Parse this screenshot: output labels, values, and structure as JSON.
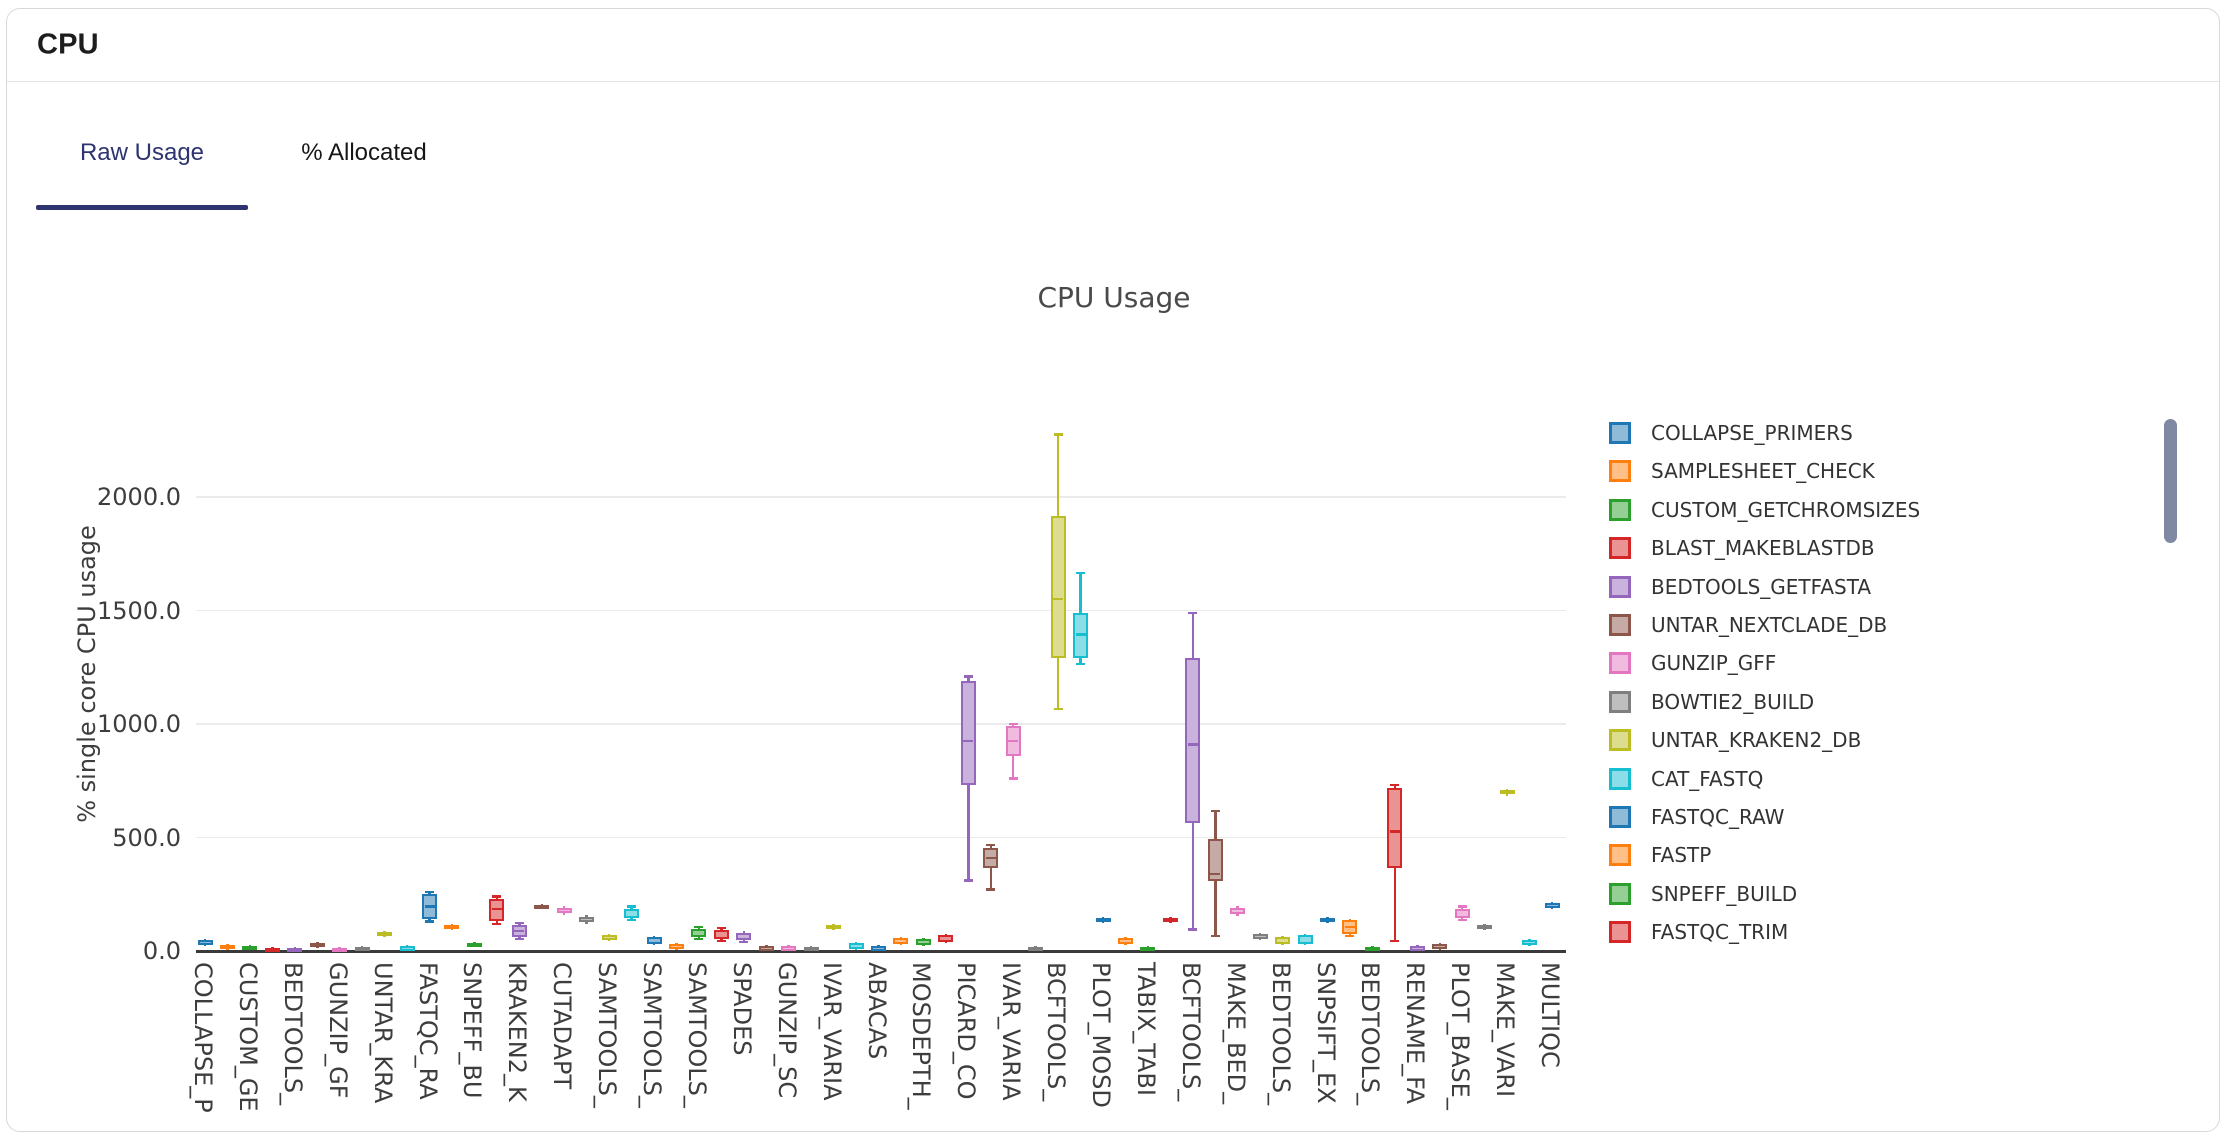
{
  "header": {
    "title": "CPU"
  },
  "tabs": [
    {
      "label": "Raw Usage",
      "active": true
    },
    {
      "label": "% Allocated",
      "active": false
    }
  ],
  "accent": {
    "tab_active": "#2d3470",
    "scrollbar": "#7f89a4"
  },
  "chart_data": {
    "type": "box",
    "title": "CPU Usage",
    "ylabel": "% single core CPU usage",
    "ylim": [
      0,
      2420
    ],
    "yticks": [
      0,
      500,
      1000,
      1500,
      2000
    ],
    "ytick_labels": [
      "0.0",
      "500.0",
      "1000.0",
      "1500.0",
      "2000.0"
    ],
    "grid": true,
    "legend_position": "right",
    "legend_scrollable": true,
    "note_values_order": "values = [whisker_low, q1, median, q3, whisker_high] in % single-core CPU",
    "palette": {
      "blue": {
        "stroke": "#1f77b4",
        "fill": "#8fbbd9"
      },
      "orange": {
        "stroke": "#ff7f0e",
        "fill": "#ffbf86"
      },
      "green": {
        "stroke": "#2ca02c",
        "fill": "#95cf95"
      },
      "red": {
        "stroke": "#d62728",
        "fill": "#ea9393"
      },
      "purple": {
        "stroke": "#9467bd",
        "fill": "#c9b3dd"
      },
      "brown": {
        "stroke": "#8c564b",
        "fill": "#c5aaa5"
      },
      "pink": {
        "stroke": "#e377c2",
        "fill": "#f1bbe0"
      },
      "gray": {
        "stroke": "#7f7f7f",
        "fill": "#bfbfbf"
      },
      "olive": {
        "stroke": "#bcbd22",
        "fill": "#dddd90"
      },
      "cyan": {
        "stroke": "#17becf",
        "fill": "#8bdee7"
      }
    },
    "legend": [
      {
        "label": "COLLAPSE_PRIMERS",
        "color": "blue"
      },
      {
        "label": "SAMPLESHEET_CHECK",
        "color": "orange"
      },
      {
        "label": "CUSTOM_GETCHROMSIZES",
        "color": "green"
      },
      {
        "label": "BLAST_MAKEBLASTDB",
        "color": "red"
      },
      {
        "label": "BEDTOOLS_GETFASTA",
        "color": "purple"
      },
      {
        "label": "UNTAR_NEXTCLADE_DB",
        "color": "brown"
      },
      {
        "label": "GUNZIP_GFF",
        "color": "pink"
      },
      {
        "label": "BOWTIE2_BUILD",
        "color": "gray"
      },
      {
        "label": "UNTAR_KRAKEN2_DB",
        "color": "olive"
      },
      {
        "label": "CAT_FASTQ",
        "color": "cyan"
      },
      {
        "label": "FASTQC_RAW",
        "color": "blue"
      },
      {
        "label": "FASTP",
        "color": "orange"
      },
      {
        "label": "SNPEFF_BUILD",
        "color": "green"
      },
      {
        "label": "FASTQC_TRIM",
        "color": "red"
      }
    ],
    "categories": [
      {
        "label": "COLLAPSE_P",
        "color": "blue",
        "values": [
          20,
          27,
          38,
          49,
          55
        ]
      },
      {
        "label": "",
        "color": "orange",
        "values": [
          5,
          9,
          18,
          27,
          31
        ]
      },
      {
        "label": "CUSTOM_GE",
        "color": "green",
        "values": [
          5,
          9,
          15,
          22,
          26
        ]
      },
      {
        "label": "",
        "color": "red",
        "values": [
          0,
          0,
          6,
          13,
          17
        ]
      },
      {
        "label": "BEDTOOLS_",
        "color": "purple",
        "values": [
          0,
          0,
          6,
          13,
          17
        ]
      },
      {
        "label": "",
        "color": "brown",
        "values": [
          13,
          18,
          27,
          35,
          40
        ]
      },
      {
        "label": "GUNZIP_GF",
        "color": "pink",
        "values": [
          0,
          0,
          6,
          13,
          17
        ]
      },
      {
        "label": "",
        "color": "gray",
        "values": [
          0,
          0,
          9,
          18,
          22
        ]
      },
      {
        "label": "UNTAR_KRA",
        "color": "olive",
        "values": [
          62,
          66,
          75,
          84,
          88
        ]
      },
      {
        "label": "",
        "color": "cyan",
        "values": [
          0,
          0,
          11,
          22,
          26
        ]
      },
      {
        "label": "FASTQC_RA",
        "color": "blue",
        "values": [
          130,
          140,
          195,
          250,
          260
        ]
      },
      {
        "label": "",
        "color": "orange",
        "values": [
          93,
          97,
          106,
          115,
          119
        ]
      },
      {
        "label": "SNPEFF_BU",
        "color": "green",
        "values": [
          18,
          22,
          28,
          35,
          40
        ]
      },
      {
        "label": "",
        "color": "red",
        "values": [
          120,
          130,
          185,
          230,
          240
        ]
      },
      {
        "label": "KRAKEN2_K",
        "color": "purple",
        "values": [
          53,
          62,
          88,
          115,
          124
        ]
      },
      {
        "label": "",
        "color": "brown",
        "values": [
          185,
          190,
          197,
          204,
          209
        ]
      },
      {
        "label": "CUTADAPT",
        "color": "pink",
        "values": [
          160,
          168,
          179,
          190,
          198
        ]
      },
      {
        "label": "",
        "color": "gray",
        "values": [
          120,
          128,
          139,
          150,
          158
        ]
      },
      {
        "label": "SAMTOOLS_",
        "color": "olive",
        "values": [
          44,
          49,
          60,
          71,
          75
        ]
      },
      {
        "label": "",
        "color": "cyan",
        "values": [
          137,
          146,
          166,
          186,
          195
        ]
      },
      {
        "label": "SAMTOOLS_",
        "color": "blue",
        "values": [
          26,
          30,
          45,
          62,
          66
        ]
      },
      {
        "label": "",
        "color": "orange",
        "values": [
          5,
          10,
          20,
          30,
          35
        ]
      },
      {
        "label": "SAMTOOLS_",
        "color": "green",
        "values": [
          53,
          62,
          80,
          97,
          106
        ]
      },
      {
        "label": "",
        "color": "red",
        "values": [
          44,
          53,
          73,
          93,
          102
        ]
      },
      {
        "label": "SPADES",
        "color": "purple",
        "values": [
          40,
          49,
          64,
          80,
          88
        ]
      },
      {
        "label": "",
        "color": "brown",
        "values": [
          0,
          0,
          11,
          22,
          26
        ]
      },
      {
        "label": "GUNZIP_SC",
        "color": "pink",
        "values": [
          0,
          0,
          11,
          22,
          26
        ]
      },
      {
        "label": "",
        "color": "gray",
        "values": [
          0,
          0,
          9,
          18,
          22
        ]
      },
      {
        "label": "IVAR_VARIA",
        "color": "olive",
        "values": [
          93,
          97,
          106,
          115,
          119
        ]
      },
      {
        "label": "",
        "color": "cyan",
        "values": [
          4,
          9,
          22,
          35,
          40
        ]
      },
      {
        "label": "ABACAS",
        "color": "blue",
        "values": [
          0,
          0,
          11,
          22,
          26
        ]
      },
      {
        "label": "",
        "color": "orange",
        "values": [
          26,
          31,
          45,
          58,
          62
        ]
      },
      {
        "label": "MOSDEPTH_",
        "color": "green",
        "values": [
          22,
          27,
          40,
          53,
          57
        ]
      },
      {
        "label": "",
        "color": "red",
        "values": [
          35,
          40,
          55,
          71,
          75
        ]
      },
      {
        "label": "PICARD_CO",
        "color": "purple",
        "values": [
          310,
          730,
          925,
          1190,
          1210
        ]
      },
      {
        "label": "",
        "color": "brown",
        "values": [
          270,
          365,
          410,
          455,
          467
        ]
      },
      {
        "label": "IVAR_VARIA",
        "color": "pink",
        "values": [
          760,
          860,
          925,
          990,
          1000
        ]
      },
      {
        "label": "",
        "color": "gray",
        "values": [
          0,
          0,
          9,
          18,
          22
        ]
      },
      {
        "label": "BCFTOOLS_",
        "color": "olive",
        "values": [
          1065,
          1290,
          1550,
          1915,
          2275
        ]
      },
      {
        "label": "",
        "color": "cyan",
        "values": [
          1265,
          1290,
          1395,
          1490,
          1665
        ]
      },
      {
        "label": "PLOT_MOSD",
        "color": "blue",
        "values": [
          123,
          128,
          137,
          146,
          151
        ]
      },
      {
        "label": "",
        "color": "orange",
        "values": [
          26,
          31,
          44,
          58,
          62
        ]
      },
      {
        "label": "TABIX_TABI",
        "color": "green",
        "values": [
          0,
          0,
          9,
          18,
          22
        ]
      },
      {
        "label": "",
        "color": "red",
        "values": [
          125,
          130,
          137,
          144,
          149
        ]
      },
      {
        "label": "BCFTOOLS_",
        "color": "purple",
        "values": [
          95,
          565,
          910,
          1290,
          1490
        ]
      },
      {
        "label": "",
        "color": "brown",
        "values": [
          66,
          308,
          340,
          493,
          617
        ]
      },
      {
        "label": "MAKE_BED_",
        "color": "pink",
        "values": [
          155,
          163,
          176,
          189,
          197
        ]
      },
      {
        "label": "",
        "color": "gray",
        "values": [
          48,
          53,
          64,
          75,
          80
        ]
      },
      {
        "label": "BEDTOOLS_",
        "color": "olive",
        "values": [
          26,
          31,
          45,
          60,
          64
        ]
      },
      {
        "label": "",
        "color": "cyan",
        "values": [
          26,
          31,
          50,
          71,
          75
        ]
      },
      {
        "label": "SNPSIFT_EX",
        "color": "blue",
        "values": [
          123,
          128,
          137,
          146,
          151
        ]
      },
      {
        "label": "",
        "color": "orange",
        "values": [
          66,
          75,
          105,
          137,
          141
        ]
      },
      {
        "label": "BEDTOOLS_",
        "color": "green",
        "values": [
          0,
          0,
          9,
          18,
          22
        ]
      },
      {
        "label": "",
        "color": "red",
        "values": [
          44,
          365,
          527,
          717,
          731
        ]
      },
      {
        "label": "RENAME_FA",
        "color": "purple",
        "values": [
          0,
          0,
          11,
          22,
          26
        ]
      },
      {
        "label": "",
        "color": "brown",
        "values": [
          4,
          9,
          20,
          31,
          35
        ]
      },
      {
        "label": "PLOT_BASE_",
        "color": "pink",
        "values": [
          137,
          146,
          166,
          186,
          195
        ]
      },
      {
        "label": "",
        "color": "gray",
        "values": [
          93,
          97,
          106,
          115,
          119
        ]
      },
      {
        "label": "MAKE_VARI",
        "color": "olive",
        "values": [
          685,
          690,
          699,
          708,
          712
        ]
      },
      {
        "label": "",
        "color": "cyan",
        "values": [
          22,
          27,
          38,
          49,
          53
        ]
      },
      {
        "label": "MULTIQC",
        "color": "blue",
        "values": [
          185,
          190,
          201,
          212,
          217
        ]
      }
    ]
  }
}
